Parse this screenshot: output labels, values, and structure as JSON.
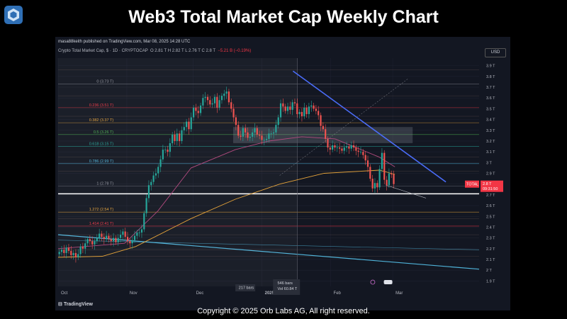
{
  "header": {
    "title": "Web3 Total Market Cap Weekly Chart"
  },
  "footer": {
    "copyright": "Copyright © 2025 Orb Labs AG, All right reserved."
  },
  "chart_header": {
    "publish_note": "masa88keith published on TradingView.com, Mar 08, 2025 14:28 UTC",
    "symbol": "Crypto Total Market Cap, $ · 1D · CRYPTOCAP",
    "ohlc": "O 2.81 T  H 2.82 T  L 2.76 T  C 2.8 T",
    "change": "−5.21 B (−0.19%)",
    "currency": "USD"
  },
  "colors": {
    "background": "#131722",
    "up_candle": "#26a69a",
    "down_candle": "#ef5350",
    "trendline": "#4a6cf7",
    "ma_orange": "#e5a33a",
    "ma_pink": "#b04a7e",
    "support_blue": "#4fb3d9",
    "price_tag": "#f23645"
  },
  "chart_data": {
    "type": "candlestick",
    "y_unit": "T",
    "ylim": [
      1.85,
      3.97
    ],
    "y_ticks": [
      "3.9 T",
      "3.8 T",
      "3.7 T",
      "3.6 T",
      "3.5 T",
      "3.4 T",
      "3.3 T",
      "3.2 T",
      "3.1 T",
      "3 T",
      "2.9 T",
      "2.8 T",
      "2.7 T",
      "2.6 T",
      "2.5 T",
      "2.4 T",
      "2.3 T",
      "2.2 T",
      "2.1 T",
      "2 T",
      "1.9 T"
    ],
    "y_tick_values": [
      3.9,
      3.8,
      3.7,
      3.6,
      3.5,
      3.4,
      3.3,
      3.2,
      3.1,
      3.0,
      2.9,
      2.8,
      2.7,
      2.6,
      2.5,
      2.4,
      2.3,
      2.2,
      2.1,
      2.0,
      1.9
    ],
    "x_ticks": [
      {
        "label": "Oct",
        "t": 0
      },
      {
        "label": "Nov",
        "t": 31
      },
      {
        "label": "Dec",
        "t": 61
      },
      {
        "label": "2025",
        "t": 92
      },
      {
        "label": "Feb",
        "t": 123
      },
      {
        "label": "Mar",
        "t": 151
      }
    ],
    "x_range": [
      0,
      190
    ],
    "closes": [
      2.17,
      2.19,
      2.16,
      2.21,
      2.18,
      2.14,
      2.16,
      2.12,
      2.15,
      2.22,
      2.2,
      2.25,
      2.29,
      2.27,
      2.24,
      2.27,
      2.3,
      2.34,
      2.31,
      2.29,
      2.32,
      2.29,
      2.27,
      2.3,
      2.26,
      2.3,
      2.33,
      2.36,
      2.31,
      2.27,
      2.25,
      2.28,
      2.32,
      2.35,
      2.35,
      2.38,
      2.53,
      2.67,
      2.79,
      2.82,
      2.88,
      2.9,
      2.96,
      3.03,
      3.12,
      3.12,
      3.1,
      3.18,
      3.26,
      3.2,
      3.27,
      3.2,
      3.3,
      3.33,
      3.38,
      3.31,
      3.42,
      3.51,
      3.48,
      3.46,
      3.53,
      3.6,
      3.61,
      3.58,
      3.54,
      3.55,
      3.61,
      3.51,
      3.58,
      3.62,
      3.64,
      3.66,
      3.56,
      3.5,
      3.42,
      3.35,
      3.25,
      3.24,
      3.32,
      3.28,
      3.23,
      3.24,
      3.28,
      3.32,
      3.26,
      3.25,
      3.21,
      3.21,
      3.22,
      3.27,
      3.27,
      3.28,
      3.35,
      3.42,
      3.55,
      3.52,
      3.48,
      3.52,
      3.49,
      3.56,
      3.55,
      3.45,
      3.47,
      3.43,
      3.51,
      3.45,
      3.52,
      3.53,
      3.5,
      3.48,
      3.44,
      3.34,
      3.31,
      3.22,
      3.14,
      3.12,
      3.16,
      3.14,
      3.14,
      3.13,
      3.11,
      3.14,
      3.15,
      3.13,
      3.16,
      3.14,
      3.11,
      3.1,
      3.1,
      3.07,
      3.02,
      2.96,
      2.85,
      2.76,
      2.81,
      2.77,
      2.94,
      3.09,
      2.84,
      2.79,
      2.9,
      2.89,
      2.8
    ],
    "horizontal_levels": [
      {
        "value": 3.73,
        "label": "0 (3.73 T)",
        "label_color": "#9598a1",
        "line_color": "#787b86"
      },
      {
        "value": 3.51,
        "label": "0.236 (3.51 T)",
        "label_color": "#f23645",
        "line_color": "#f23645"
      },
      {
        "value": 3.37,
        "label": "0.382 (3.37 T)",
        "label_color": "#e5a33a",
        "line_color": "#e5a33a"
      },
      {
        "value": 3.26,
        "label": "0.5 (3.26 T)",
        "label_color": "#4caf50",
        "line_color": "#4caf50"
      },
      {
        "value": 3.15,
        "label": "0.618 (3.15 T)",
        "label_color": "#26a69a",
        "line_color": "#26a69a"
      },
      {
        "value": 2.99,
        "label": "0.786 (2.99 T)",
        "label_color": "#4fb3d9",
        "line_color": "#4fb3d9"
      },
      {
        "value": 2.78,
        "label": "1 (2.78 T)",
        "label_color": "#9598a1",
        "line_color": "#787b86"
      },
      {
        "value": 2.54,
        "label": "1.272 (2.54 T)",
        "label_color": "#e5a33a",
        "line_color": "#e5a33a"
      },
      {
        "value": 2.41,
        "label": "1.414 (2.41 T)",
        "label_color": "#f23645",
        "line_color": "#f23645"
      }
    ],
    "support_level": 2.71,
    "ma_slow": [
      [
        0,
        2.12
      ],
      [
        20,
        2.13
      ],
      [
        35,
        2.22
      ],
      [
        60,
        2.48
      ],
      [
        80,
        2.66
      ],
      [
        100,
        2.8
      ],
      [
        120,
        2.9
      ],
      [
        145,
        2.93
      ],
      [
        152,
        2.89
      ]
    ],
    "ma_fast": [
      [
        0,
        2.2
      ],
      [
        30,
        2.25
      ],
      [
        45,
        2.55
      ],
      [
        60,
        2.95
      ],
      [
        80,
        3.12
      ],
      [
        95,
        3.2
      ],
      [
        110,
        3.24
      ],
      [
        125,
        3.22
      ],
      [
        145,
        3.05
      ],
      [
        152,
        2.96
      ]
    ],
    "downtrend_line": [
      [
        106,
        3.85
      ],
      [
        175,
        2.82
      ]
    ],
    "current_price_label": "TOTAL",
    "current_price": "2.8 T",
    "countdown": "09:31:50",
    "bars_label": "546 bars",
    "bars_range_label": "217 bars",
    "vol_label": "Vol 60.84 T",
    "date_label": "2025"
  },
  "branding": {
    "tv": "TradingView"
  }
}
